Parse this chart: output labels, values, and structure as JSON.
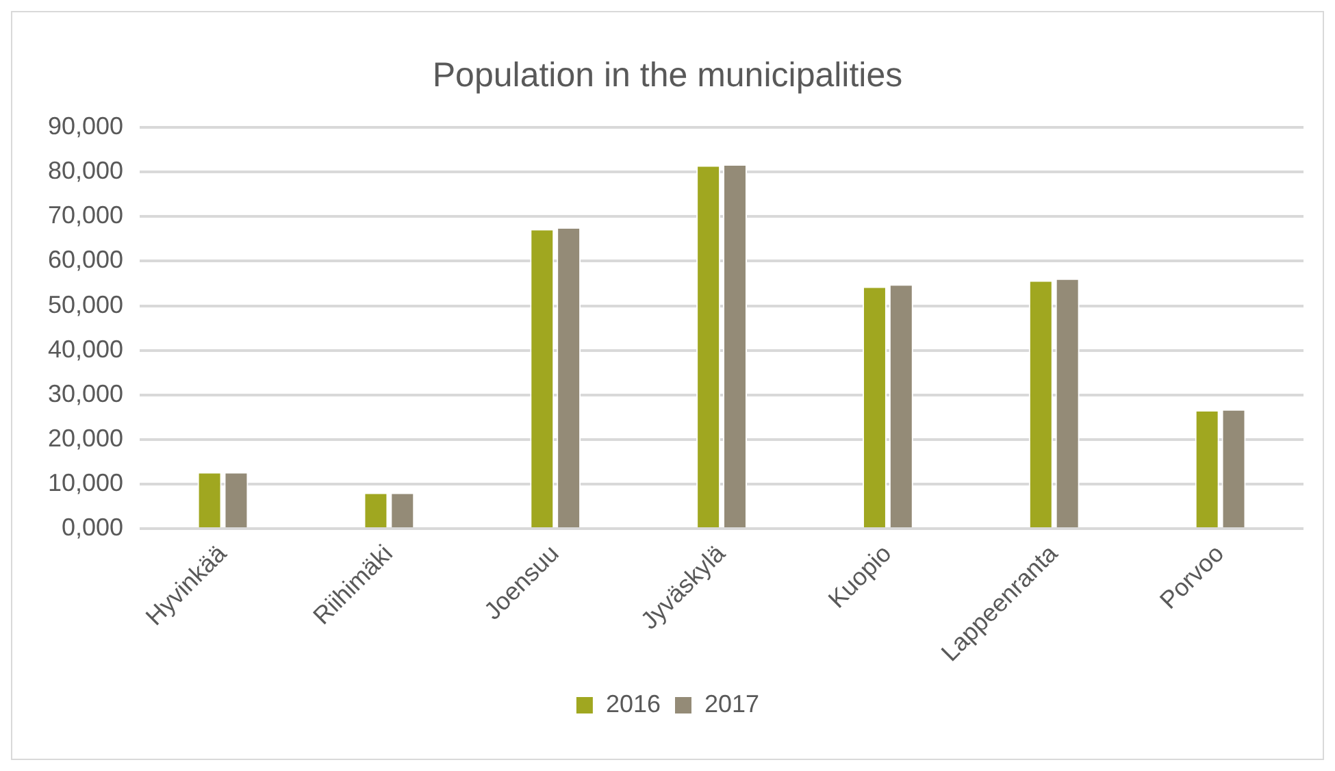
{
  "chart_data": {
    "type": "bar",
    "title": "Population in the municipalities",
    "categories": [
      "Hyvinkää",
      "Riihimäki",
      "Joensuu",
      "Jyväskylä",
      "Kuopio",
      "Lappeenranta",
      "Porvoo"
    ],
    "series": [
      {
        "name": "2016",
        "color": "#a0a720",
        "values": [
          12700,
          8100,
          67200,
          81500,
          54300,
          55700,
          26600
        ]
      },
      {
        "name": "2017",
        "color": "#948b77",
        "values": [
          12700,
          8100,
          67600,
          81700,
          54800,
          56100,
          26800
        ]
      }
    ],
    "ylim": [
      0,
      90000
    ],
    "yticks": [
      {
        "value": 0,
        "label": "0,000"
      },
      {
        "value": 10000,
        "label": "10,000"
      },
      {
        "value": 20000,
        "label": "20,000"
      },
      {
        "value": 30000,
        "label": "30,000"
      },
      {
        "value": 40000,
        "label": "40,000"
      },
      {
        "value": 50000,
        "label": "50,000"
      },
      {
        "value": 60000,
        "label": "60,000"
      },
      {
        "value": 70000,
        "label": "70,000"
      },
      {
        "value": 80000,
        "label": "80,000"
      },
      {
        "value": 90000,
        "label": "90,000"
      }
    ],
    "grid": "y",
    "legend": "bottom"
  }
}
